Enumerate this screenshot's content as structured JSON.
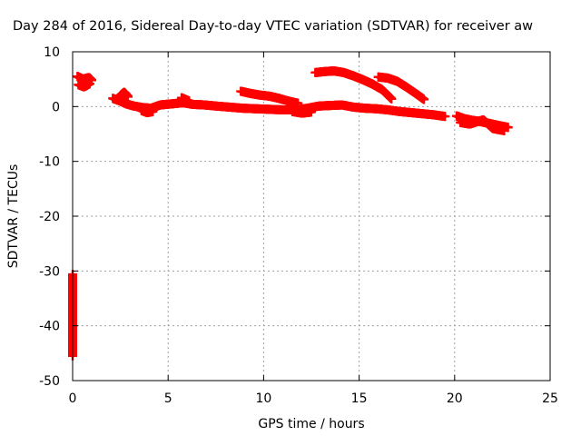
{
  "chart_data": {
    "type": "scatter",
    "title": "Day 284 of 2016, Sidereal Day-to-day VTEC variation (SDTVAR) for receiver aw",
    "xlabel": "GPS time / hours",
    "ylabel": "SDTVAR / TECUs",
    "xlim": [
      0,
      25
    ],
    "ylim": [
      -50,
      10
    ],
    "x_ticks": [
      0,
      5,
      10,
      15,
      20,
      25
    ],
    "y_ticks": [
      -50,
      -40,
      -30,
      -20,
      -10,
      0,
      10
    ],
    "grid": true,
    "marker": "plus",
    "color": "#ff0000",
    "series": [
      {
        "segments": [
          {
            "x": [
              0.25,
              0.55,
              0.85,
              1.0
            ],
            "y": [
              5.5,
              5.0,
              5.3,
              4.8
            ]
          },
          {
            "x": [
              0.3,
              0.6,
              0.9
            ],
            "y": [
              4.0,
              3.6,
              4.2
            ]
          },
          {
            "x": [
              2.1,
              2.5,
              2.8,
              3.2,
              3.7,
              4.1,
              4.6,
              5.2,
              5.8,
              6.3,
              6.9,
              7.5,
              8.2,
              8.9,
              9.6,
              10.3,
              11.0,
              11.7,
              12.3,
              12.9,
              13.5,
              14.1,
              14.7,
              15.3,
              15.9,
              16.5,
              17.1,
              17.7,
              18.3,
              18.9,
              19.5
            ],
            "y": [
              1.5,
              1.0,
              0.5,
              0.1,
              -0.2,
              -0.3,
              0.3,
              0.5,
              0.7,
              0.4,
              0.3,
              0.1,
              -0.1,
              -0.3,
              -0.4,
              -0.5,
              -0.6,
              -0.6,
              -0.3,
              0.1,
              0.2,
              0.3,
              -0.1,
              -0.3,
              -0.4,
              -0.6,
              -0.9,
              -1.1,
              -1.3,
              -1.5,
              -1.8
            ]
          },
          {
            "x": [
              2.5,
              2.7,
              2.9
            ],
            "y": [
              2.0,
              2.6,
              1.8
            ]
          },
          {
            "x": [
              3.6,
              3.9,
              4.2
            ],
            "y": [
              -0.7,
              -1.1,
              -0.9
            ]
          },
          {
            "x": [
              5.7,
              5.9,
              6.1
            ],
            "y": [
              1.6,
              1.3,
              1.0
            ]
          },
          {
            "x": [
              11.5,
              12.0,
              12.5
            ],
            "y": [
              -0.9,
              -1.2,
              -1.0
            ]
          },
          {
            "x": [
              8.8,
              9.3,
              9.8,
              10.3,
              10.8,
              11.3,
              11.8
            ],
            "y": [
              2.8,
              2.4,
              2.1,
              1.9,
              1.5,
              1.0,
              0.6
            ]
          },
          {
            "x": [
              12.7,
              13.2,
              13.7,
              14.2,
              14.7,
              15.2,
              15.7,
              16.2,
              16.7
            ],
            "y": [
              6.2,
              6.4,
              6.5,
              6.2,
              5.6,
              4.9,
              4.1,
              3.1,
              1.4
            ]
          },
          {
            "x": [
              16.0,
              16.5,
              17.0,
              17.5,
              18.0,
              18.4
            ],
            "y": [
              5.4,
              5.2,
              4.6,
              3.5,
              2.3,
              1.3
            ]
          },
          {
            "x": [
              20.1,
              20.5,
              20.9,
              21.3,
              21.7,
              22.1,
              22.5,
              22.8
            ],
            "y": [
              -1.7,
              -2.2,
              -2.5,
              -2.7,
              -3.0,
              -3.3,
              -3.6,
              -3.8
            ]
          },
          {
            "x": [
              20.3,
              20.8,
              21.5,
              22.0,
              22.6
            ],
            "y": [
              -2.9,
              -3.2,
              -2.4,
              -4.0,
              -4.4
            ]
          },
          {
            "x": [
              0.0,
              0.0,
              0.0,
              0.0
            ],
            "y": [
              -30.6,
              -35.1,
              -41.0,
              -45.5
            ]
          }
        ]
      }
    ]
  }
}
